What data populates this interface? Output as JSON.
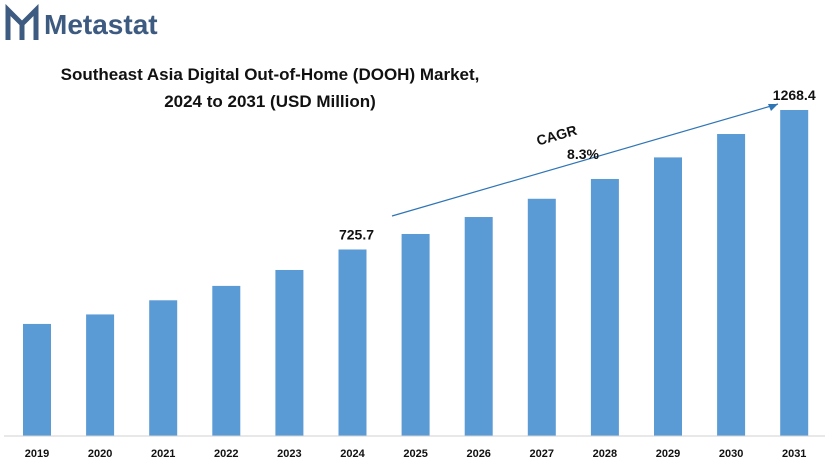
{
  "brand": {
    "name": "Metastat",
    "color": "#3d5a80"
  },
  "chart_data": {
    "type": "bar",
    "title_line1": "Southeast Asia Digital Out-of-Home (DOOH) Market,",
    "title_line2": "2024 to 2031 (USD Million)",
    "categories": [
      "2019",
      "2020",
      "2021",
      "2022",
      "2023",
      "2024",
      "2025",
      "2026",
      "2027",
      "2028",
      "2029",
      "2030",
      "2031"
    ],
    "values": [
      436,
      473,
      528,
      584,
      646,
      725.7,
      786,
      852,
      923,
      1000,
      1084,
      1175,
      1268.4
    ],
    "labels": {
      "2024": "725.7",
      "2031": "1268.4"
    },
    "cagr_label": "CAGR",
    "cagr_value": "8.3%",
    "bar_color": "#5b9bd5",
    "ylim": [
      0,
      1400
    ],
    "xlabel": "",
    "ylabel": "",
    "grid": false,
    "legend": false
  }
}
